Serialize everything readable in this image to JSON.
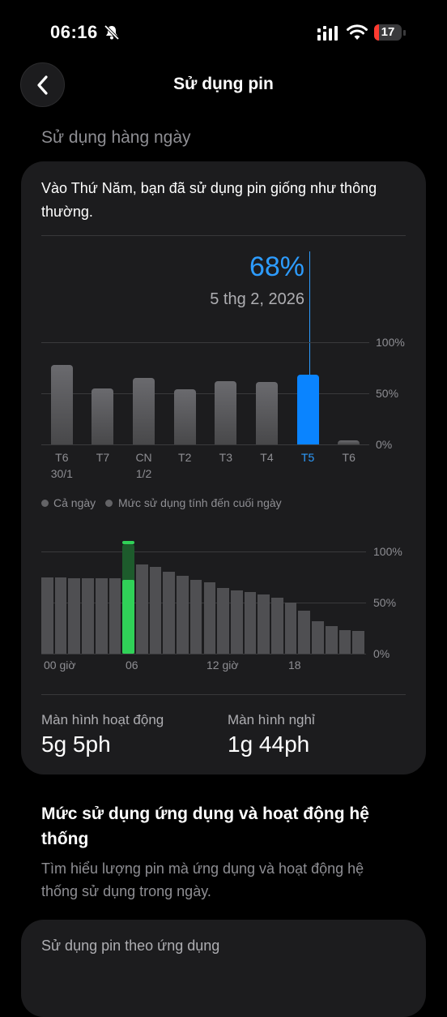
{
  "status_bar": {
    "time": "06:16",
    "battery_level": "17"
  },
  "header": {
    "title": "Sử dụng pin"
  },
  "daily": {
    "section_label": "Sử dụng hàng ngày",
    "summary": "Vào Thứ Năm, bạn đã sử dụng pin giống như thông thường.",
    "selected_percent": "68%",
    "selected_date": "5 thg 2, 2026",
    "y_ticks": [
      "100%",
      "50%",
      "0%"
    ]
  },
  "chart_data": [
    {
      "type": "bar",
      "categories": [
        "T6 30/1",
        "T7",
        "CN 1/2",
        "T2",
        "T3",
        "T4",
        "T5",
        "T6"
      ],
      "values": [
        78,
        55,
        65,
        54,
        62,
        61,
        68,
        4
      ],
      "selected_index": 6,
      "ylim": [
        0,
        100
      ],
      "y_ticks": [
        "100%",
        "50%",
        "0%"
      ],
      "grid": true
    },
    {
      "type": "bar",
      "x_ticks": [
        "00 giờ",
        "06",
        "12 giờ",
        "18"
      ],
      "values": [
        75,
        75,
        74,
        74,
        74,
        74,
        72,
        87,
        85,
        80,
        76,
        72,
        70,
        64,
        62,
        60,
        58,
        55,
        50,
        42,
        32,
        27,
        23,
        22
      ],
      "selected_index": 6,
      "selected_range": [
        72,
        110
      ],
      "ylim": [
        0,
        100
      ],
      "y_ticks": [
        "100%",
        "50%",
        "0%"
      ],
      "grid": true
    }
  ],
  "days": [
    {
      "line1": "T6",
      "line2": "30/1"
    },
    {
      "line1": "T7",
      "line2": ""
    },
    {
      "line1": "CN",
      "line2": "1/2"
    },
    {
      "line1": "T2",
      "line2": ""
    },
    {
      "line1": "T3",
      "line2": ""
    },
    {
      "line1": "T4",
      "line2": ""
    },
    {
      "line1": "T5",
      "line2": ""
    },
    {
      "line1": "T6",
      "line2": ""
    }
  ],
  "legend": {
    "all_day": "Cả ngày",
    "end_of_day": "Mức sử dụng tính đến cuối ngày"
  },
  "hourly": {
    "x_labels": [
      "00 giờ",
      "06",
      "12 giờ",
      "18"
    ],
    "y_ticks": [
      "100%",
      "50%",
      "0%"
    ]
  },
  "stats": {
    "screen_on_label": "Màn hình hoạt động",
    "screen_on_value": "5g 5ph",
    "screen_off_label": "Màn hình nghỉ",
    "screen_off_value": "1g 44ph"
  },
  "apps_section": {
    "title": "Mức sử dụng ứng dụng và hoạt động hệ thống",
    "description": "Tìm hiểu lượng pin mà ứng dụng và hoạt động hệ thống sử dụng trong ngày.",
    "card_title": "Sử dụng pin theo ứng dụng"
  },
  "colors": {
    "accent": "#2d9cff",
    "green": "#30d158",
    "bar": "#5a5a5e"
  }
}
